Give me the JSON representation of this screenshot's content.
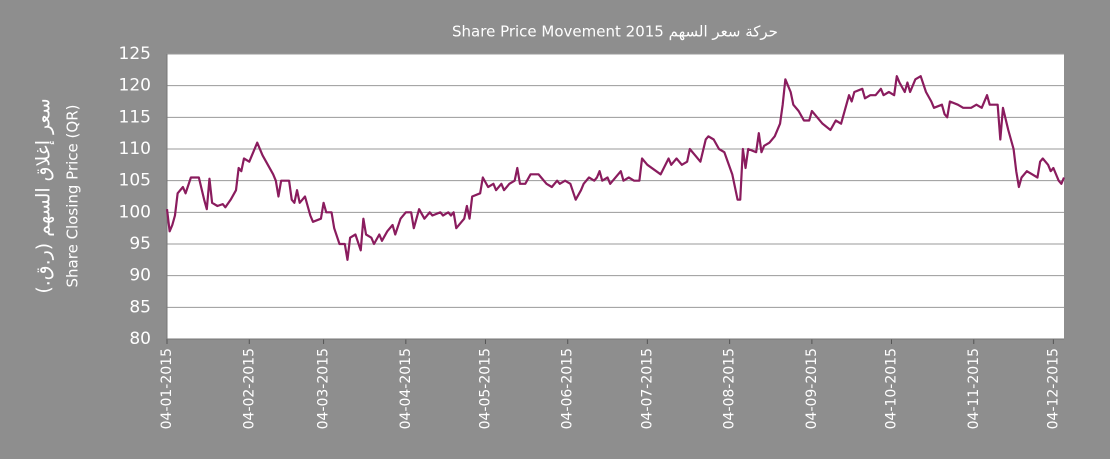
{
  "chart_data": {
    "type": "line",
    "title": "Share Price Movement 2015 حركة سعر السهم",
    "y_label": [
      "سعر إغلاق السهم (ر.ق.)",
      "Share Closing Price (QR)"
    ],
    "color": "#8a1c5e",
    "grid": true,
    "ylim": [
      80,
      125
    ],
    "yticks": [
      80,
      85,
      90,
      95,
      100,
      105,
      110,
      115,
      120,
      125
    ],
    "xlim": [
      "2015-01-04",
      "2015-12-08"
    ],
    "xticks": [
      {
        "value": "2015-01-04",
        "label": "04-01-2015"
      },
      {
        "value": "2015-02-04",
        "label": "04-02-2015"
      },
      {
        "value": "2015-03-04",
        "label": "04-03-2015"
      },
      {
        "value": "2015-04-04",
        "label": "04-04-2015"
      },
      {
        "value": "2015-05-04",
        "label": "04-05-2015"
      },
      {
        "value": "2015-06-04",
        "label": "04-06-2015"
      },
      {
        "value": "2015-07-04",
        "label": "04-07-2015"
      },
      {
        "value": "2015-08-04",
        "label": "04-08-2015"
      },
      {
        "value": "2015-09-04",
        "label": "04-09-2015"
      },
      {
        "value": "2015-10-04",
        "label": "04-10-2015"
      },
      {
        "value": "2015-11-04",
        "label": "04-11-2015"
      },
      {
        "value": "2015-12-04",
        "label": "04-12-2015"
      }
    ],
    "x": [
      "2015-01-04",
      "2015-01-05",
      "2015-01-06",
      "2015-01-07",
      "2015-01-08",
      "2015-01-10",
      "2015-01-11",
      "2015-01-13",
      "2015-01-16",
      "2015-01-18",
      "2015-01-19",
      "2015-01-20",
      "2015-01-21",
      "2015-01-23",
      "2015-01-25",
      "2015-01-26",
      "2015-01-28",
      "2015-01-30",
      "2015-01-31",
      "2015-02-01",
      "2015-02-02",
      "2015-02-04",
      "2015-02-07",
      "2015-02-09",
      "2015-02-13",
      "2015-02-14",
      "2015-02-15",
      "2015-02-16",
      "2015-02-19",
      "2015-02-20",
      "2015-02-21",
      "2015-02-22",
      "2015-02-23",
      "2015-02-24",
      "2015-02-25",
      "2015-02-27",
      "2015-02-28",
      "2015-03-03",
      "2015-03-04",
      "2015-03-05",
      "2015-03-07",
      "2015-03-08",
      "2015-03-10",
      "2015-03-12",
      "2015-03-13",
      "2015-03-14",
      "2015-03-16",
      "2015-03-18",
      "2015-03-19",
      "2015-03-20",
      "2015-03-22",
      "2015-03-23",
      "2015-03-25",
      "2015-03-26",
      "2015-03-28",
      "2015-03-30",
      "2015-03-31",
      "2015-04-02",
      "2015-04-04",
      "2015-04-06",
      "2015-04-07",
      "2015-04-08",
      "2015-04-09",
      "2015-04-11",
      "2015-04-13",
      "2015-04-14",
      "2015-04-17",
      "2015-04-18",
      "2015-04-20",
      "2015-04-21",
      "2015-04-22",
      "2015-04-23",
      "2015-04-25",
      "2015-04-26",
      "2015-04-27",
      "2015-04-28",
      "2015-04-29",
      "2015-05-02",
      "2015-05-03",
      "2015-05-05",
      "2015-05-07",
      "2015-05-08",
      "2015-05-10",
      "2015-05-11",
      "2015-05-13",
      "2015-05-15",
      "2015-05-16",
      "2015-05-17",
      "2015-05-19",
      "2015-05-21",
      "2015-05-24",
      "2015-05-25",
      "2015-05-27",
      "2015-05-29",
      "2015-05-31",
      "2015-06-01",
      "2015-06-03",
      "2015-06-05",
      "2015-06-07",
      "2015-06-09",
      "2015-06-10",
      "2015-06-12",
      "2015-06-14",
      "2015-06-15",
      "2015-06-16",
      "2015-06-17",
      "2015-06-19",
      "2015-06-20",
      "2015-06-24",
      "2015-06-25",
      "2015-06-27",
      "2015-06-29",
      "2015-07-01",
      "2015-07-02",
      "2015-07-04",
      "2015-07-09",
      "2015-07-12",
      "2015-07-13",
      "2015-07-15",
      "2015-07-17",
      "2015-07-19",
      "2015-07-20",
      "2015-07-22",
      "2015-07-24",
      "2015-07-26",
      "2015-07-27",
      "2015-07-29",
      "2015-07-31",
      "2015-08-02",
      "2015-08-05",
      "2015-08-07",
      "2015-08-08",
      "2015-08-09",
      "2015-08-10",
      "2015-08-11",
      "2015-08-14",
      "2015-08-15",
      "2015-08-16",
      "2015-08-17",
      "2015-08-19",
      "2015-08-21",
      "2015-08-23",
      "2015-08-24",
      "2015-08-25",
      "2015-08-27",
      "2015-08-28",
      "2015-08-30",
      "2015-09-01",
      "2015-09-03",
      "2015-09-04",
      "2015-09-06",
      "2015-09-08",
      "2015-09-11",
      "2015-09-13",
      "2015-09-15",
      "2015-09-18",
      "2015-09-19",
      "2015-09-20",
      "2015-09-23",
      "2015-09-24",
      "2015-09-26",
      "2015-09-28",
      "2015-09-30",
      "2015-10-01",
      "2015-10-03",
      "2015-10-05",
      "2015-10-06",
      "2015-10-07",
      "2015-10-09",
      "2015-10-10",
      "2015-10-11",
      "2015-10-13",
      "2015-10-15",
      "2015-10-17",
      "2015-10-19",
      "2015-10-20",
      "2015-10-23",
      "2015-10-24",
      "2015-10-25",
      "2015-10-26",
      "2015-10-29",
      "2015-10-31",
      "2015-11-03",
      "2015-11-05",
      "2015-11-07",
      "2015-11-09",
      "2015-11-10",
      "2015-11-13",
      "2015-11-14",
      "2015-11-15",
      "2015-11-17",
      "2015-11-19",
      "2015-11-20",
      "2015-11-21",
      "2015-11-22",
      "2015-11-24",
      "2015-11-26",
      "2015-11-28",
      "2015-11-29",
      "2015-11-30",
      "2015-12-02",
      "2015-12-03",
      "2015-12-04",
      "2015-12-06",
      "2015-12-07",
      "2015-12-08"
    ],
    "values": [
      100.5,
      97,
      98,
      99.5,
      103,
      104,
      103,
      105.5,
      105.5,
      102,
      100.5,
      105.3,
      101.5,
      101,
      101.3,
      100.8,
      102,
      103.5,
      107,
      106.5,
      108.5,
      108,
      111,
      109,
      106,
      105,
      102.5,
      105,
      105,
      102,
      101.5,
      103.5,
      101.5,
      102,
      102.5,
      99.5,
      98.5,
      99,
      101.5,
      100,
      100,
      97.5,
      95,
      95,
      92.5,
      96,
      96.5,
      94,
      99,
      96.5,
      96,
      95,
      96.5,
      95.5,
      97,
      98,
      96.5,
      99,
      100,
      100,
      97.5,
      99,
      100.5,
      99,
      100,
      99.5,
      100,
      99.5,
      100,
      99.5,
      100,
      97.5,
      98.5,
      99,
      101,
      99,
      102.5,
      103,
      105.5,
      104,
      104.5,
      103.5,
      104.5,
      103.5,
      104.5,
      105,
      107,
      104.5,
      104.5,
      106,
      106,
      105.5,
      104.5,
      104,
      105,
      104.5,
      105,
      104.5,
      102,
      103.5,
      104.5,
      105.5,
      105,
      105.5,
      106.5,
      105,
      105.5,
      104.5,
      106.5,
      105,
      105.5,
      105,
      105,
      108.5,
      107.5,
      106,
      108.5,
      107.5,
      108.5,
      107.5,
      108,
      110,
      109,
      108,
      111.5,
      112,
      111.5,
      110,
      109.5,
      106,
      102,
      102,
      110,
      107,
      110,
      109.5,
      112.5,
      109.5,
      110.5,
      111,
      112,
      114,
      117,
      121,
      119,
      117,
      116,
      114.5,
      114.5,
      116,
      115,
      114,
      113,
      114.5,
      114,
      118.5,
      117.5,
      119,
      119.5,
      118,
      118.5,
      118.5,
      119.5,
      118.5,
      119,
      118.5,
      121.5,
      120.5,
      119,
      120.5,
      119,
      121,
      121.5,
      119,
      117.5,
      116.5,
      117,
      115.5,
      115,
      117.5,
      117,
      116.5,
      116.5,
      117,
      116.5,
      118.5,
      117,
      117,
      111.5,
      116.5,
      113,
      110,
      106.5,
      104,
      105.5,
      106.5,
      106,
      105.5,
      108,
      108.5,
      107.5,
      106.5,
      107,
      105,
      104.5,
      105.5
    ]
  }
}
